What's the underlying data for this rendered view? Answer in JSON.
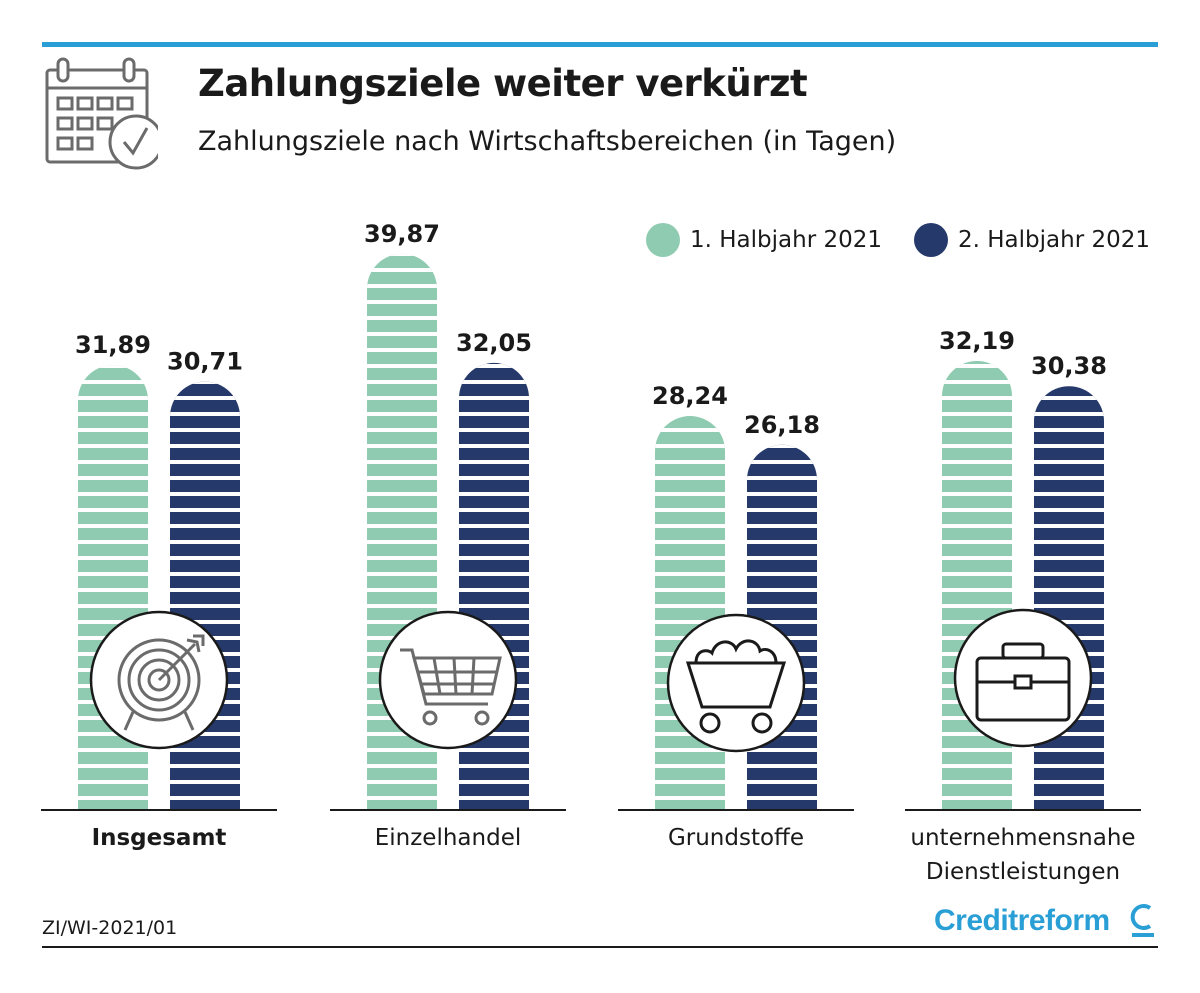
{
  "header": {
    "title": "Zahlungsziele weiter verkürzt",
    "subtitle": "Zahlungsziele nach Wirtschaftsbereichen (in Tagen)"
  },
  "footer": {
    "source": "ZI/WI-2021/01",
    "brand": "Creditreform"
  },
  "colors": {
    "accent": "#2a9fd6",
    "series1": "#8fcbb0",
    "series2": "#26396b"
  },
  "chart_data": {
    "type": "bar",
    "title": "Zahlungsziele weiter verkürzt",
    "subtitle": "Zahlungsziele nach Wirtschaftsbereichen (in Tagen)",
    "categories": [
      "Insgesamt",
      "Einzelhandel",
      "Grundstoffe",
      "unternehmensnahe Dienstleistungen"
    ],
    "category_icons": [
      "target-icon",
      "shopping-cart-icon",
      "coal-cart-icon",
      "briefcase-icon"
    ],
    "series": [
      {
        "name": "1. Halbjahr 2021",
        "values": [
          31.89,
          39.87,
          28.24,
          32.19
        ],
        "labels": [
          "31,89",
          "39,87",
          "28,24",
          "32,19"
        ],
        "color": "#8fcbb0"
      },
      {
        "name": "2. Halbjahr 2021",
        "values": [
          30.71,
          32.05,
          26.18,
          30.38
        ],
        "labels": [
          "30,71",
          "32,05",
          "26,18",
          "30,38"
        ],
        "color": "#26396b"
      }
    ],
    "legend_position": "top-right",
    "grid": false,
    "ylim": [
      0,
      40
    ]
  }
}
